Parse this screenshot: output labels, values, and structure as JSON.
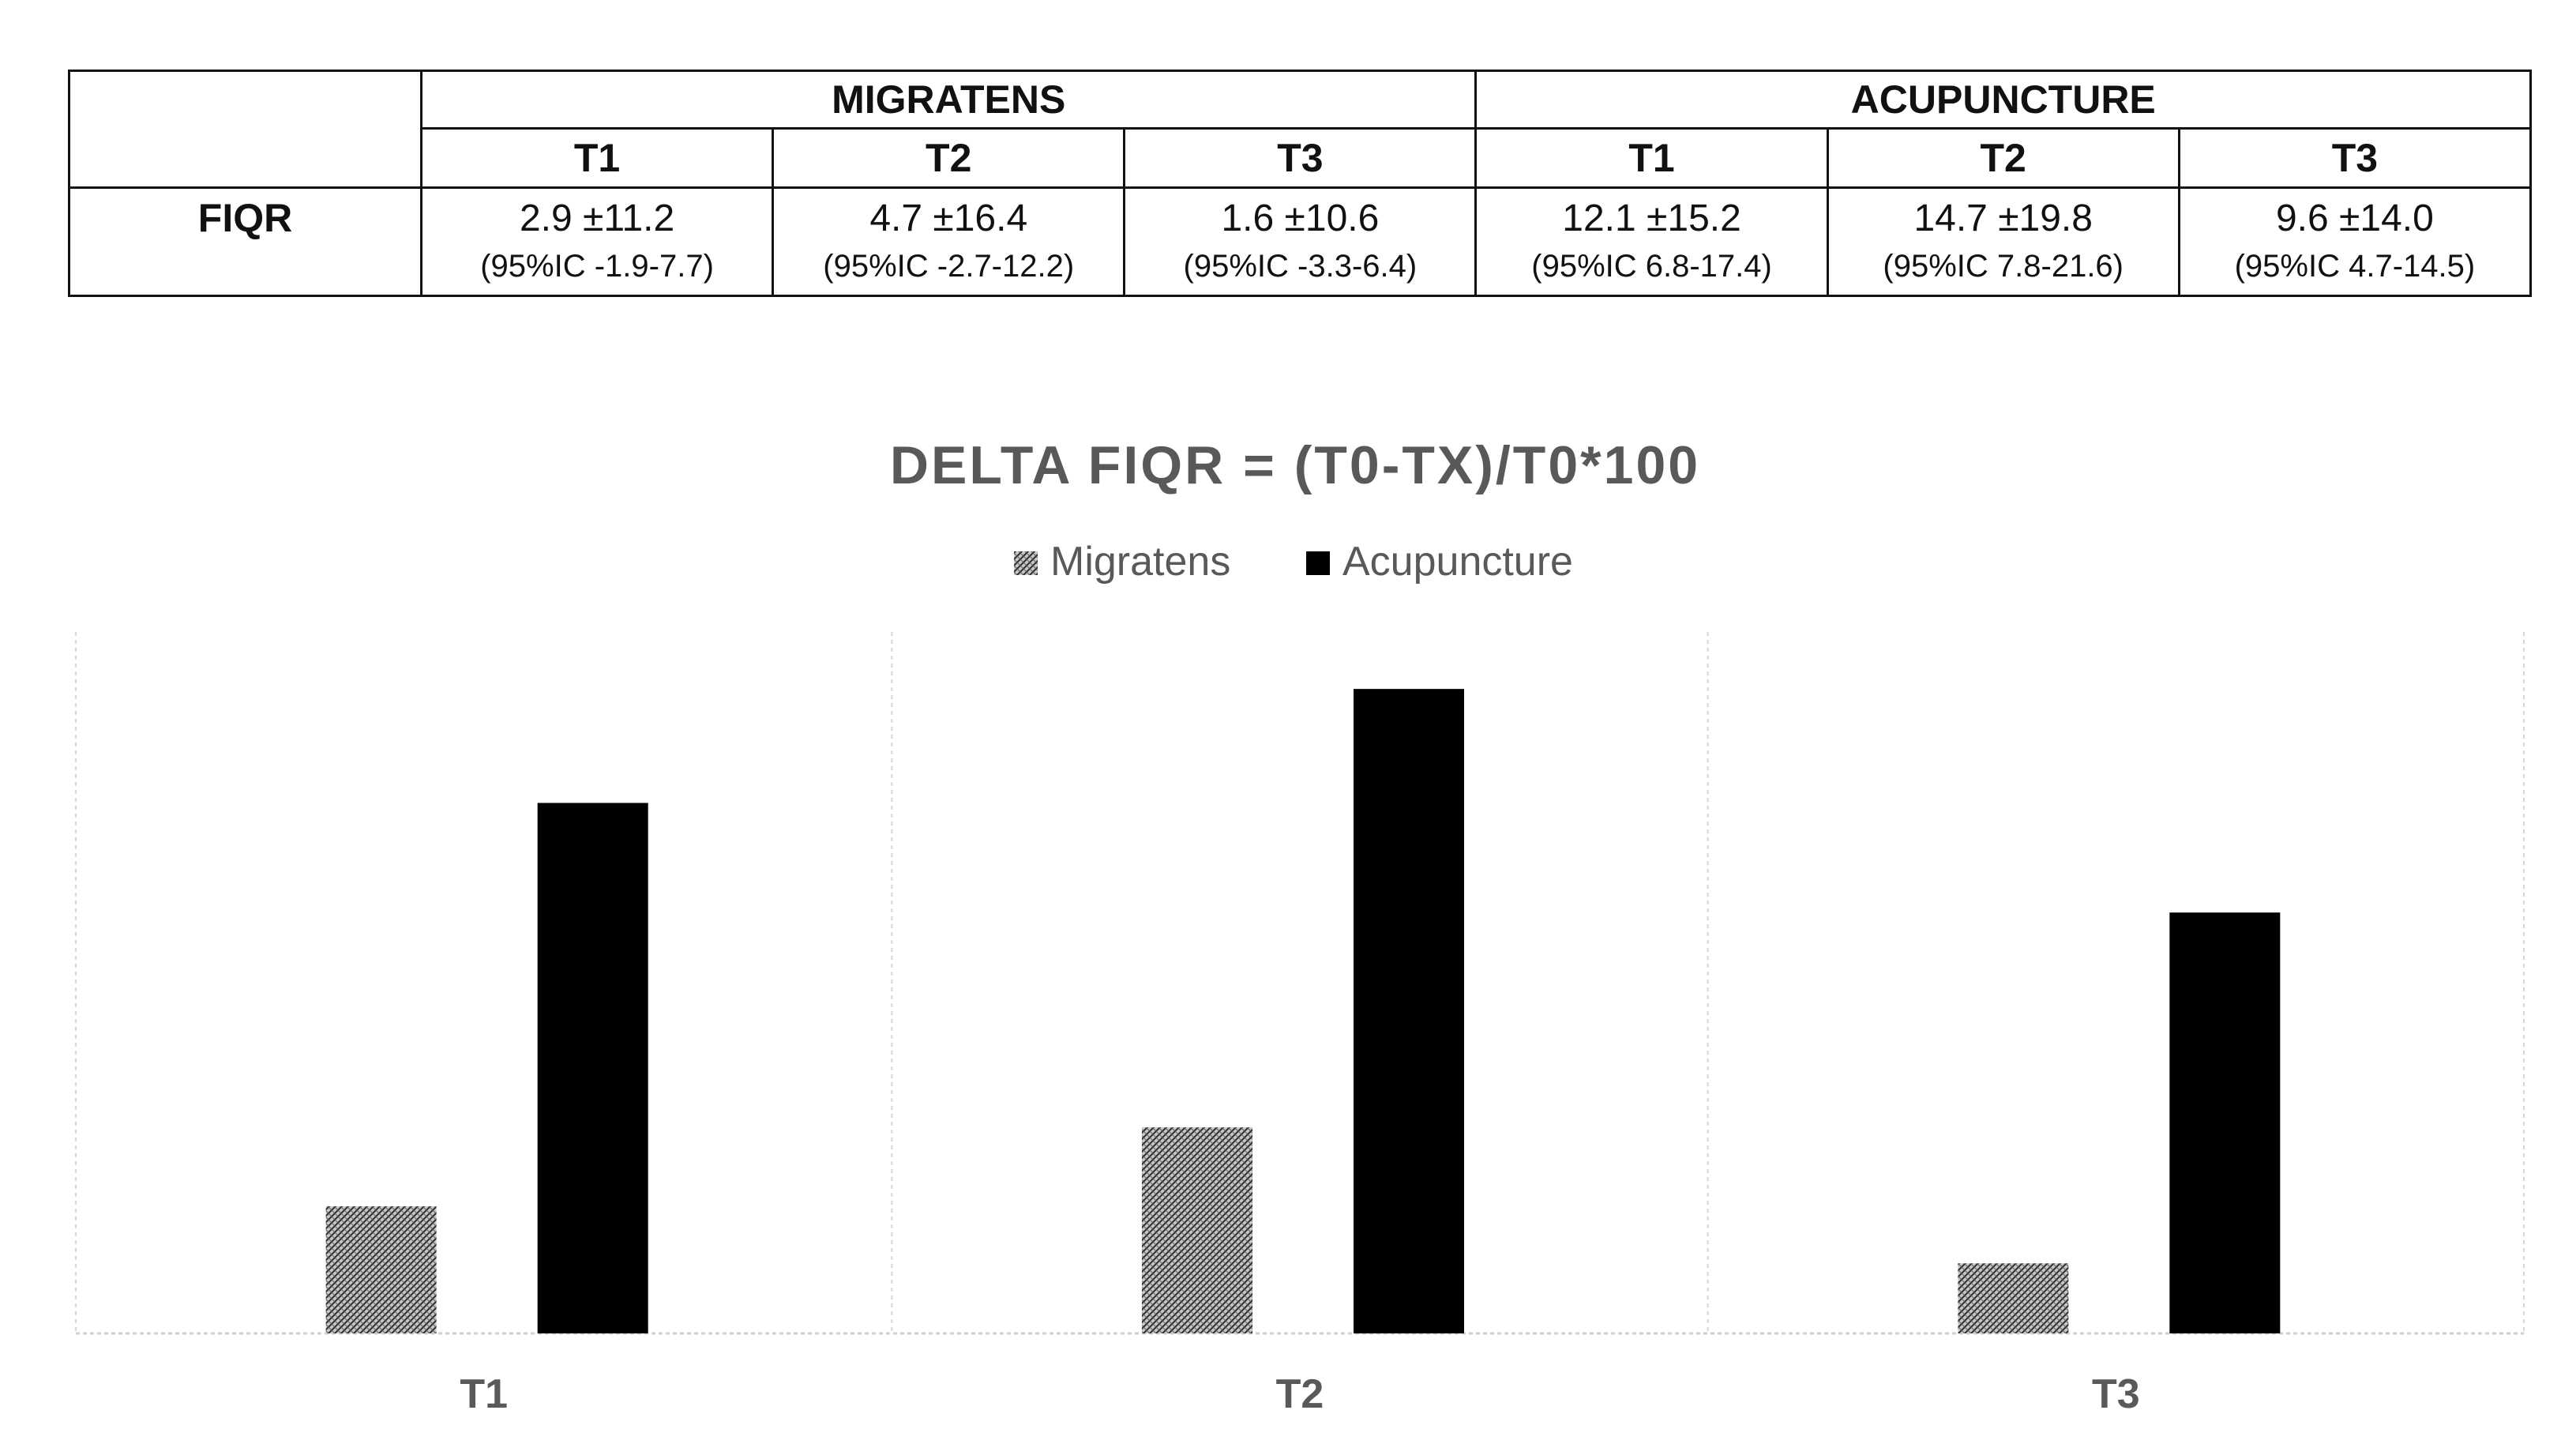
{
  "table": {
    "row_label": "FIQR",
    "groups": [
      "MIGRATENS",
      "ACUPUNCTURE"
    ],
    "timepoints": [
      "T1",
      "T2",
      "T3",
      "T1",
      "T2",
      "T3"
    ],
    "cells": [
      {
        "mean": "2.9 ±11.2",
        "ci": "(95%IC -1.9-7.7)"
      },
      {
        "mean": "4.7 ±16.4",
        "ci": "(95%IC -2.7-12.2)"
      },
      {
        "mean": "1.6 ±10.6",
        "ci": "(95%IC -3.3-6.4)"
      },
      {
        "mean": "12.1 ±15.2",
        "ci": "(95%IC 6.8-17.4)"
      },
      {
        "mean": "14.7 ±19.8",
        "ci": "(95%IC 7.8-21.6)"
      },
      {
        "mean": "9.6 ±14.0",
        "ci": "(95%IC 4.7-14.5)"
      }
    ]
  },
  "chart_data": {
    "type": "bar",
    "title": "DELTA FIQR = (T0-TX)/T0*100",
    "categories": [
      "T1",
      "T2",
      "T3"
    ],
    "series": [
      {
        "name": "Migratens",
        "values": [
          2.9,
          4.7,
          1.6
        ],
        "color": "#8a8a8a",
        "pattern": "dotted-hatch"
      },
      {
        "name": "Acupuncture",
        "values": [
          12.1,
          14.7,
          9.6
        ],
        "color": "#000000",
        "pattern": "solid"
      }
    ],
    "ylim": [
      0,
      16
    ],
    "legend": "top-center",
    "grid": "vertical-dashed"
  }
}
